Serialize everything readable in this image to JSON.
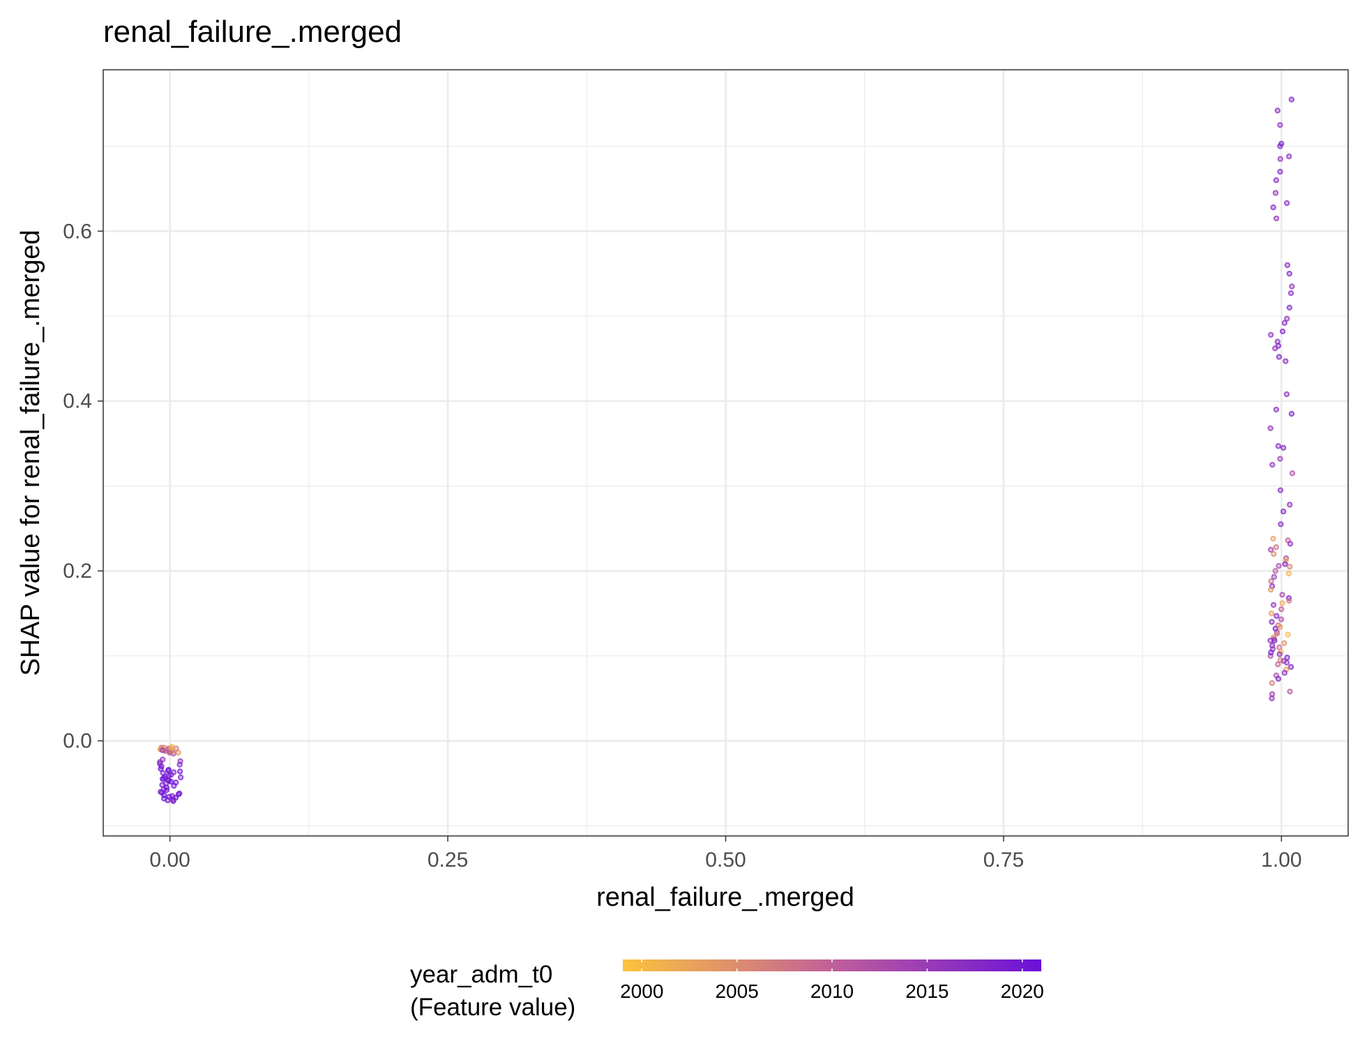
{
  "chart_data": {
    "type": "scatter",
    "title": "renal_failure_.merged",
    "xlabel": "renal_failure_.merged",
    "ylabel": "SHAP value for renal_failure_.merged",
    "xlim": [
      -0.06,
      1.06
    ],
    "ylim": [
      -0.112,
      0.79
    ],
    "x_ticks": [
      0.0,
      0.25,
      0.5,
      0.75,
      1.0
    ],
    "x_tick_labels": [
      "0.00",
      "0.25",
      "0.50",
      "0.75",
      "1.00"
    ],
    "y_ticks": [
      0.0,
      0.2,
      0.4,
      0.6
    ],
    "y_tick_labels": [
      "0.0",
      "0.2",
      "0.4",
      "0.6"
    ],
    "grid": true,
    "legend": {
      "title_line1": "year_adm_t0",
      "title_line2": "(Feature value)",
      "placement": "bottom",
      "ticks": [
        2000,
        2005,
        2010,
        2015,
        2020
      ],
      "tick_labels": [
        "2000",
        "2005",
        "2010",
        "2015",
        "2020"
      ],
      "range": [
        1999,
        2021
      ],
      "color_low": "#fcc33c",
      "color_mid": "#c0609a",
      "color_high": "#6a10d8"
    },
    "groups": [
      {
        "x": 0,
        "description_note": "",
        "points": [
          {
            "y": -0.01,
            "year": 2003
          },
          {
            "y": -0.012,
            "year": 2006
          },
          {
            "y": -0.008,
            "year": 2008
          },
          {
            "y": -0.011,
            "year": 2002
          },
          {
            "y": -0.009,
            "year": 2010
          },
          {
            "y": -0.013,
            "year": 2005
          },
          {
            "y": -0.01,
            "year": 2012
          },
          {
            "y": -0.014,
            "year": 2004
          },
          {
            "y": -0.007,
            "year": 2001
          },
          {
            "y": -0.011,
            "year": 2009
          },
          {
            "y": -0.012,
            "year": 2011
          },
          {
            "y": -0.009,
            "year": 2007
          },
          {
            "y": -0.015,
            "year": 2013
          },
          {
            "y": -0.01,
            "year": 2000
          },
          {
            "y": -0.013,
            "year": 2008
          },
          {
            "y": -0.008,
            "year": 2006
          },
          {
            "y": -0.012,
            "year": 2003
          },
          {
            "y": -0.011,
            "year": 2014
          },
          {
            "y": -0.009,
            "year": 2002
          },
          {
            "y": -0.014,
            "year": 2010
          },
          {
            "y": -0.022,
            "year": 2016
          },
          {
            "y": -0.025,
            "year": 2017
          },
          {
            "y": -0.028,
            "year": 2018
          },
          {
            "y": -0.024,
            "year": 2016
          },
          {
            "y": -0.03,
            "year": 2019
          },
          {
            "y": -0.034,
            "year": 2019
          },
          {
            "y": -0.036,
            "year": 2020
          },
          {
            "y": -0.038,
            "year": 2019
          },
          {
            "y": -0.035,
            "year": 2021
          },
          {
            "y": -0.04,
            "year": 2020
          },
          {
            "y": -0.037,
            "year": 2019
          },
          {
            "y": -0.042,
            "year": 2020
          },
          {
            "y": -0.045,
            "year": 2021
          },
          {
            "y": -0.043,
            "year": 2019
          },
          {
            "y": -0.047,
            "year": 2020
          },
          {
            "y": -0.044,
            "year": 2020
          },
          {
            "y": -0.048,
            "year": 2021
          },
          {
            "y": -0.05,
            "year": 2019
          },
          {
            "y": -0.052,
            "year": 2020
          },
          {
            "y": -0.049,
            "year": 2020
          },
          {
            "y": -0.055,
            "year": 2021
          },
          {
            "y": -0.058,
            "year": 2020
          },
          {
            "y": -0.06,
            "year": 2019
          },
          {
            "y": -0.062,
            "year": 2020
          },
          {
            "y": -0.064,
            "year": 2021
          },
          {
            "y": -0.063,
            "year": 2020
          },
          {
            "y": -0.066,
            "year": 2020
          },
          {
            "y": -0.068,
            "year": 2021
          },
          {
            "y": -0.065,
            "year": 2019
          },
          {
            "y": -0.07,
            "year": 2020
          },
          {
            "y": -0.067,
            "year": 2021
          },
          {
            "y": -0.071,
            "year": 2020
          },
          {
            "y": -0.061,
            "year": 2020
          },
          {
            "y": -0.057,
            "year": 2019
          },
          {
            "y": -0.041,
            "year": 2020
          },
          {
            "y": -0.033,
            "year": 2021
          },
          {
            "y": -0.027,
            "year": 2018
          },
          {
            "y": -0.046,
            "year": 2020
          },
          {
            "y": -0.053,
            "year": 2021
          },
          {
            "y": -0.069,
            "year": 2019
          }
        ]
      },
      {
        "x": 1,
        "points": [
          {
            "y": 0.755,
            "year": 2018
          },
          {
            "y": 0.742,
            "year": 2017
          },
          {
            "y": 0.725,
            "year": 2016
          },
          {
            "y": 0.703,
            "year": 2019
          },
          {
            "y": 0.7,
            "year": 2018
          },
          {
            "y": 0.688,
            "year": 2017
          },
          {
            "y": 0.685,
            "year": 2016
          },
          {
            "y": 0.67,
            "year": 2018
          },
          {
            "y": 0.66,
            "year": 2017
          },
          {
            "y": 0.645,
            "year": 2016
          },
          {
            "y": 0.633,
            "year": 2017
          },
          {
            "y": 0.628,
            "year": 2018
          },
          {
            "y": 0.615,
            "year": 2016
          },
          {
            "y": 0.56,
            "year": 2017
          },
          {
            "y": 0.55,
            "year": 2018
          },
          {
            "y": 0.535,
            "year": 2016
          },
          {
            "y": 0.527,
            "year": 2017
          },
          {
            "y": 0.51,
            "year": 2018
          },
          {
            "y": 0.497,
            "year": 2016
          },
          {
            "y": 0.492,
            "year": 2017
          },
          {
            "y": 0.482,
            "year": 2018
          },
          {
            "y": 0.478,
            "year": 2016
          },
          {
            "y": 0.47,
            "year": 2017
          },
          {
            "y": 0.465,
            "year": 2019
          },
          {
            "y": 0.462,
            "year": 2016
          },
          {
            "y": 0.452,
            "year": 2018
          },
          {
            "y": 0.447,
            "year": 2017
          },
          {
            "y": 0.408,
            "year": 2016
          },
          {
            "y": 0.39,
            "year": 2017
          },
          {
            "y": 0.385,
            "year": 2018
          },
          {
            "y": 0.368,
            "year": 2016
          },
          {
            "y": 0.347,
            "year": 2017
          },
          {
            "y": 0.345,
            "year": 2018
          },
          {
            "y": 0.332,
            "year": 2015
          },
          {
            "y": 0.325,
            "year": 2016
          },
          {
            "y": 0.315,
            "year": 2012
          },
          {
            "y": 0.295,
            "year": 2017
          },
          {
            "y": 0.278,
            "year": 2016
          },
          {
            "y": 0.27,
            "year": 2018
          },
          {
            "y": 0.255,
            "year": 2017
          },
          {
            "y": 0.238,
            "year": 2003
          },
          {
            "y": 0.236,
            "year": 2010
          },
          {
            "y": 0.232,
            "year": 2016
          },
          {
            "y": 0.228,
            "year": 2008
          },
          {
            "y": 0.225,
            "year": 2014
          },
          {
            "y": 0.22,
            "year": 2005
          },
          {
            "y": 0.215,
            "year": 2012
          },
          {
            "y": 0.212,
            "year": 2002
          },
          {
            "y": 0.208,
            "year": 2018
          },
          {
            "y": 0.205,
            "year": 2006
          },
          {
            "y": 0.2,
            "year": 2011
          },
          {
            "y": 0.197,
            "year": 2001
          },
          {
            "y": 0.193,
            "year": 2015
          },
          {
            "y": 0.188,
            "year": 2009
          },
          {
            "y": 0.182,
            "year": 2017
          },
          {
            "y": 0.178,
            "year": 2004
          },
          {
            "y": 0.172,
            "year": 2013
          },
          {
            "y": 0.168,
            "year": 2019
          },
          {
            "y": 0.165,
            "year": 2007
          },
          {
            "y": 0.16,
            "year": 2016
          },
          {
            "y": 0.155,
            "year": 2010
          },
          {
            "y": 0.15,
            "year": 2003
          },
          {
            "y": 0.147,
            "year": 2018
          },
          {
            "y": 0.143,
            "year": 2012
          },
          {
            "y": 0.14,
            "year": 2017
          },
          {
            "y": 0.136,
            "year": 2008
          },
          {
            "y": 0.132,
            "year": 2019
          },
          {
            "y": 0.128,
            "year": 2014
          },
          {
            "y": 0.125,
            "year": 2000
          },
          {
            "y": 0.122,
            "year": 2002
          },
          {
            "y": 0.12,
            "year": 2011
          },
          {
            "y": 0.118,
            "year": 2016
          },
          {
            "y": 0.115,
            "year": 2005
          },
          {
            "y": 0.112,
            "year": 2018
          },
          {
            "y": 0.11,
            "year": 2009
          },
          {
            "y": 0.108,
            "year": 2015
          },
          {
            "y": 0.105,
            "year": 2001
          },
          {
            "y": 0.102,
            "year": 2017
          },
          {
            "y": 0.1,
            "year": 2012
          },
          {
            "y": 0.098,
            "year": 2019
          },
          {
            "y": 0.095,
            "year": 2006
          },
          {
            "y": 0.092,
            "year": 2016
          },
          {
            "y": 0.09,
            "year": 2010
          },
          {
            "y": 0.087,
            "year": 2018
          },
          {
            "y": 0.084,
            "year": 2004
          },
          {
            "y": 0.08,
            "year": 2017
          },
          {
            "y": 0.077,
            "year": 2013
          },
          {
            "y": 0.073,
            "year": 2018
          },
          {
            "y": 0.068,
            "year": 2007
          },
          {
            "y": 0.058,
            "year": 2011
          },
          {
            "y": 0.055,
            "year": 2014
          },
          {
            "y": 0.05,
            "year": 2016
          },
          {
            "y": 0.118,
            "year": 2018
          },
          {
            "y": 0.126,
            "year": 2006
          },
          {
            "y": 0.104,
            "year": 2019
          },
          {
            "y": 0.094,
            "year": 2015
          },
          {
            "y": 0.134,
            "year": 2003
          },
          {
            "y": 0.206,
            "year": 2013
          },
          {
            "y": 0.162,
            "year": 2002
          }
        ]
      }
    ]
  }
}
